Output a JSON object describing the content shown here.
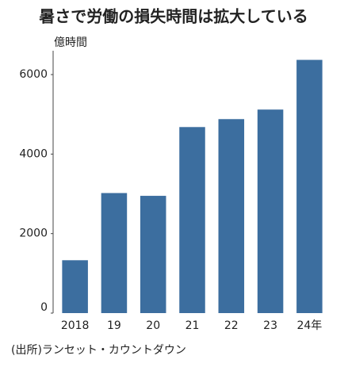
{
  "chart_data": {
    "type": "bar",
    "title": "暑さで労働の損失時間は拡大している",
    "y_label": "億時間",
    "categories": [
      "2018",
      "19",
      "20",
      "21",
      "22",
      "23",
      "24年"
    ],
    "values": [
      1330,
      3020,
      2950,
      4680,
      4880,
      5120,
      6370
    ],
    "color": "#3c6e9f",
    "ylim": [
      0,
      6600
    ],
    "yticks": [
      0,
      2000,
      4000,
      6000
    ],
    "grid": false,
    "source": "(出所)ランセット・カウントダウン"
  }
}
